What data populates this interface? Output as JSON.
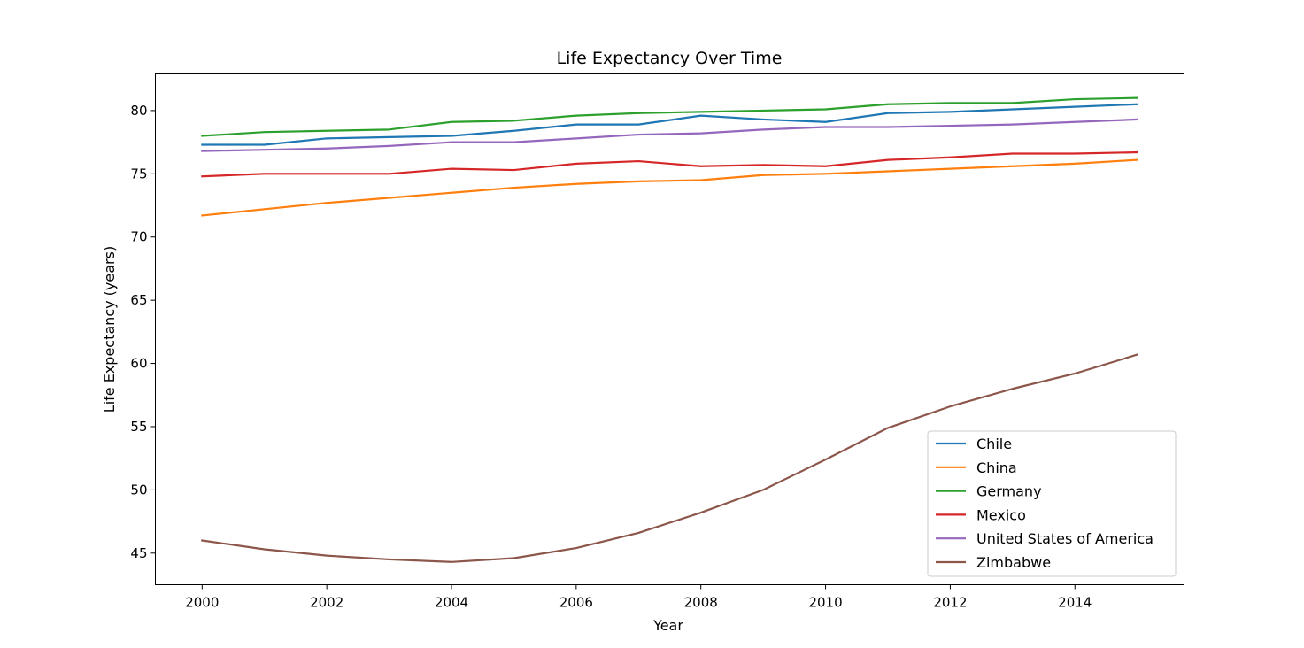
{
  "chart_data": {
    "type": "line",
    "title": "Life Expectancy Over Time",
    "xlabel": "Year",
    "ylabel": "Life Expectancy (years)",
    "xlim": [
      1999.25,
      2015.75
    ],
    "ylim": [
      42.5,
      82.9
    ],
    "x_ticks": [
      2000,
      2002,
      2004,
      2006,
      2008,
      2010,
      2012,
      2014
    ],
    "y_ticks": [
      45,
      50,
      55,
      60,
      65,
      70,
      75,
      80
    ],
    "grid": false,
    "legend_position": "lower-right",
    "x": [
      2000,
      2001,
      2002,
      2003,
      2004,
      2005,
      2006,
      2007,
      2008,
      2009,
      2010,
      2011,
      2012,
      2013,
      2014,
      2015
    ],
    "series": [
      {
        "name": "Chile",
        "color": "#1f77b4",
        "values": [
          77.3,
          77.3,
          77.8,
          77.9,
          78.0,
          78.4,
          78.9,
          78.9,
          79.6,
          79.3,
          79.1,
          79.8,
          79.9,
          80.1,
          80.3,
          80.5
        ]
      },
      {
        "name": "China",
        "color": "#ff7f0e",
        "values": [
          71.7,
          72.2,
          72.7,
          73.1,
          73.5,
          73.9,
          74.2,
          74.4,
          74.5,
          74.9,
          75.0,
          75.2,
          75.4,
          75.6,
          75.8,
          76.1
        ]
      },
      {
        "name": "Germany",
        "color": "#2ca02c",
        "values": [
          78.0,
          78.3,
          78.4,
          78.5,
          79.1,
          79.2,
          79.6,
          79.8,
          79.9,
          80.0,
          80.1,
          80.5,
          80.6,
          80.6,
          80.9,
          81.0
        ]
      },
      {
        "name": "Mexico",
        "color": "#d62728",
        "values": [
          74.8,
          75.0,
          75.0,
          75.0,
          75.4,
          75.3,
          75.8,
          76.0,
          75.6,
          75.7,
          75.6,
          76.1,
          76.3,
          76.6,
          76.6,
          76.7
        ]
      },
      {
        "name": "United States of America",
        "color": "#9467bd",
        "values": [
          76.8,
          76.9,
          77.0,
          77.2,
          77.5,
          77.5,
          77.8,
          78.1,
          78.2,
          78.5,
          78.7,
          78.7,
          78.8,
          78.9,
          79.1,
          79.3
        ]
      },
      {
        "name": "Zimbabwe",
        "color": "#8c564b",
        "values": [
          46.0,
          45.3,
          44.8,
          44.5,
          44.3,
          44.6,
          45.4,
          46.6,
          48.2,
          50.0,
          52.4,
          54.9,
          56.6,
          58.0,
          59.2,
          60.7
        ]
      }
    ]
  }
}
